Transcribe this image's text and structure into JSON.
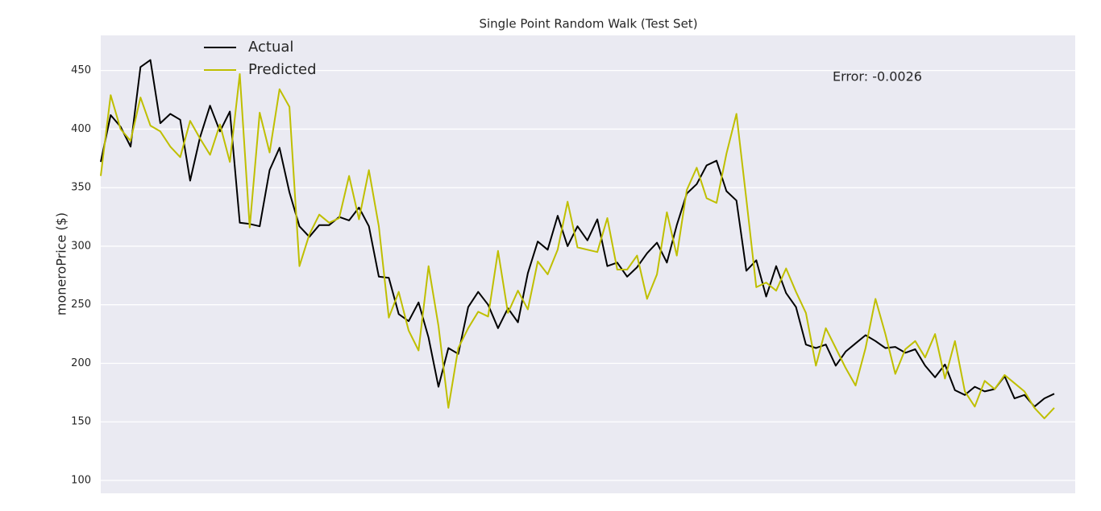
{
  "chart_data": {
    "type": "line",
    "title": "Single Point Random Walk (Test Set)",
    "ylabel": "moneroPrice ($)",
    "annotation": "Error: -0.0026",
    "legend": "upper left",
    "grid": true,
    "ylim": [
      89,
      480
    ],
    "yticks": [
      100,
      150,
      200,
      250,
      300,
      350,
      400,
      450
    ],
    "categories": [
      null,
      null,
      null,
      null,
      null,
      null,
      null,
      null,
      null,
      null,
      null,
      null,
      null,
      null,
      null,
      null,
      null,
      null,
      null,
      null,
      null,
      null,
      null,
      null,
      null,
      null,
      null,
      null,
      null,
      null,
      null,
      null,
      null,
      null,
      null,
      null,
      null,
      null,
      null,
      null,
      null,
      null,
      null,
      null,
      null,
      null,
      null,
      null,
      null,
      null,
      null,
      null,
      null,
      null,
      null,
      null,
      null,
      null,
      null,
      null,
      null,
      null,
      null,
      null,
      null,
      null,
      null,
      null,
      null,
      null,
      null,
      null,
      null,
      null,
      null,
      null,
      null,
      null,
      null,
      null,
      null,
      null,
      null,
      null,
      null,
      null,
      null,
      null,
      null,
      null,
      null,
      null,
      null,
      null,
      null,
      null,
      null
    ],
    "series": [
      {
        "name": "Actual",
        "color": "#000000",
        "values": [
          372,
          412,
          402,
          385,
          453,
          459,
          405,
          413,
          408,
          356,
          393,
          420,
          398,
          415,
          320,
          319,
          317,
          365,
          384,
          346,
          317,
          308,
          318,
          318,
          325,
          322,
          333,
          317,
          274,
          273,
          242,
          236,
          252,
          222,
          180,
          213,
          208,
          248,
          261,
          250,
          230,
          247,
          235,
          277,
          304,
          297,
          326,
          300,
          317,
          305,
          323,
          283,
          286,
          274,
          282,
          294,
          303,
          286,
          318,
          345,
          353,
          369,
          373,
          347,
          339,
          279,
          288,
          257,
          283,
          260,
          248,
          216,
          213,
          216,
          198,
          210,
          217,
          224,
          219,
          213,
          214,
          209,
          212,
          198,
          188,
          199,
          177,
          173,
          180,
          176,
          178,
          189,
          170,
          173,
          163,
          170,
          174
        ]
      },
      {
        "name": "Predicted",
        "color": "#bfbf00",
        "values": [
          360,
          429,
          400,
          390,
          427,
          403,
          398,
          385,
          376,
          407,
          392,
          378,
          404,
          372,
          447,
          316,
          414,
          380,
          434,
          419,
          283,
          310,
          327,
          320,
          324,
          360,
          323,
          365,
          317,
          239,
          261,
          228,
          211,
          283,
          232,
          162,
          213,
          230,
          244,
          240,
          296,
          243,
          262,
          246,
          287,
          276,
          297,
          338,
          299,
          297,
          295,
          324,
          280,
          280,
          292,
          255,
          276,
          329,
          292,
          348,
          367,
          341,
          337,
          379,
          413,
          340,
          265,
          269,
          262,
          281,
          261,
          243,
          198,
          230,
          213,
          196,
          181,
          213,
          255,
          225,
          191,
          212,
          219,
          205,
          225,
          187,
          219,
          176,
          163,
          185,
          178,
          190,
          183,
          176,
          162,
          153,
          162
        ]
      }
    ]
  }
}
